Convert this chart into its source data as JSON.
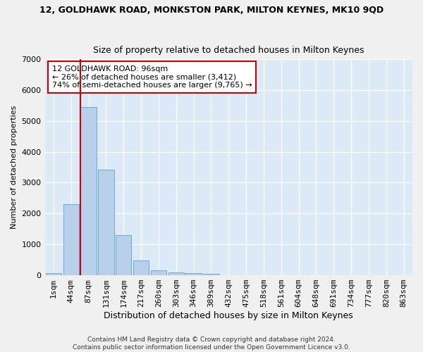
{
  "title": "12, GOLDHAWK ROAD, MONKSTON PARK, MILTON KEYNES, MK10 9QD",
  "subtitle": "Size of property relative to detached houses in Milton Keynes",
  "xlabel": "Distribution of detached houses by size in Milton Keynes",
  "ylabel": "Number of detached properties",
  "footer_line1": "Contains HM Land Registry data © Crown copyright and database right 2024.",
  "footer_line2": "Contains public sector information licensed under the Open Government Licence v3.0.",
  "bar_labels": [
    "1sqm",
    "44sqm",
    "87sqm",
    "131sqm",
    "174sqm",
    "217sqm",
    "260sqm",
    "303sqm",
    "346sqm",
    "389sqm",
    "432sqm",
    "475sqm",
    "518sqm",
    "561sqm",
    "604sqm",
    "648sqm",
    "691sqm",
    "734sqm",
    "777sqm",
    "820sqm",
    "863sqm"
  ],
  "bar_values": [
    80,
    2300,
    5450,
    3430,
    1310,
    470,
    160,
    100,
    65,
    40,
    0,
    0,
    0,
    0,
    0,
    0,
    0,
    0,
    0,
    0,
    0
  ],
  "bar_color": "#b8d0ea",
  "bar_edgecolor": "#6aaad4",
  "background_color": "#dce9f7",
  "grid_color": "#ffffff",
  "fig_background": "#f0f0f0",
  "vline_x_index": 2,
  "vline_color": "#cc0000",
  "annotation_text": "12 GOLDHAWK ROAD: 96sqm\n← 26% of detached houses are smaller (3,412)\n74% of semi-detached houses are larger (9,765) →",
  "annotation_box_color": "#ffffff",
  "annotation_box_edgecolor": "#cc0000",
  "ylim": [
    0,
    7000
  ],
  "yticks": [
    0,
    1000,
    2000,
    3000,
    4000,
    5000,
    6000,
    7000
  ],
  "title_fontsize": 9,
  "subtitle_fontsize": 9,
  "xlabel_fontsize": 9,
  "ylabel_fontsize": 8,
  "tick_fontsize": 8,
  "annot_fontsize": 8,
  "footer_fontsize": 6.5
}
